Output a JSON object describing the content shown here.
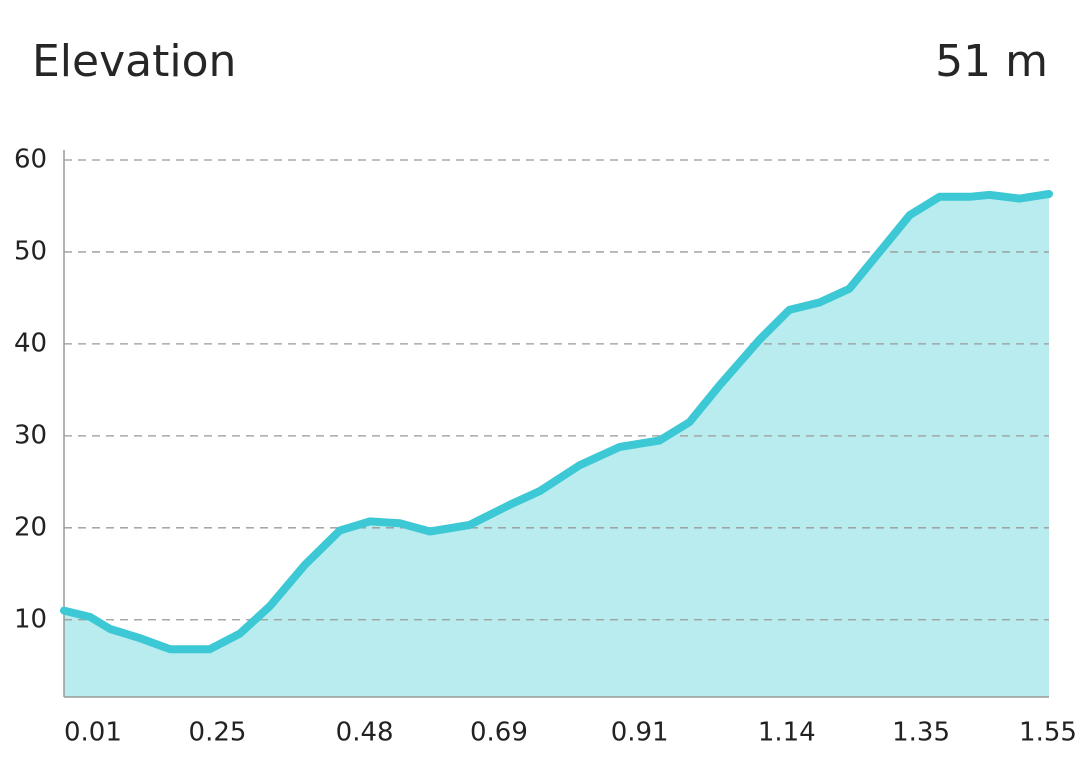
{
  "header": {
    "title": "Elevation",
    "current": "51 m"
  },
  "chart_data": {
    "type": "area",
    "x": [
      0.01,
      0.051,
      0.082,
      0.129,
      0.176,
      0.238,
      0.285,
      0.332,
      0.387,
      0.441,
      0.488,
      0.535,
      0.582,
      0.644,
      0.707,
      0.754,
      0.816,
      0.879,
      0.941,
      0.988,
      1.035,
      1.098,
      1.144,
      1.191,
      1.238,
      1.285,
      1.332,
      1.379,
      1.426,
      1.457,
      1.504,
      1.55
    ],
    "series": [
      {
        "color": "#3cc8d4",
        "values": [
          11,
          10.3,
          9,
          8,
          6.8,
          6.8,
          8.5,
          11.5,
          16,
          19.7,
          20.7,
          20.5,
          19.6,
          20.3,
          22.5,
          24,
          26.8,
          28.8,
          29.5,
          31.5,
          35.5,
          40.5,
          43.7,
          44.5,
          46,
          50,
          54,
          56,
          56,
          56.2,
          55.8,
          56.3
        ]
      }
    ],
    "fill_color": "#b8ecef",
    "xlim": [
      0.01,
      1.55
    ],
    "xticks": [
      0.01,
      0.25,
      0.48,
      0.69,
      0.91,
      1.14,
      1.35,
      1.55
    ],
    "ylim": [
      1.6,
      60
    ],
    "yticks": [
      10,
      20,
      30,
      40,
      50,
      60
    ],
    "grid": true
  }
}
